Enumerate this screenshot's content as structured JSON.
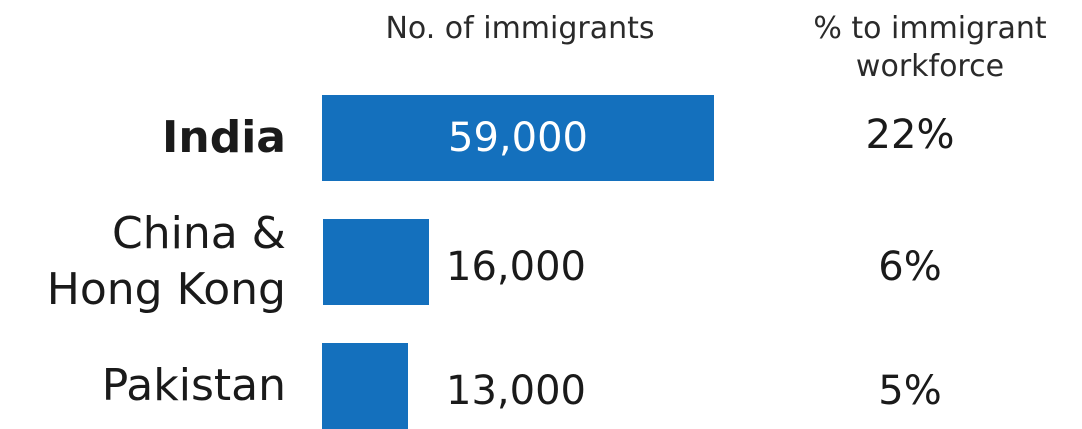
{
  "chart_data": {
    "type": "bar",
    "orientation": "horizontal",
    "headers": {
      "values": "No. of immigrants",
      "share": "% to immigrant workforce"
    },
    "categories": [
      "India",
      "China & Hong Kong",
      "Pakistan"
    ],
    "values": [
      59000,
      16000,
      13000
    ],
    "value_labels": [
      "59,000",
      "16,000",
      "13,000"
    ],
    "share_labels": [
      "22%",
      "6%",
      "5%"
    ],
    "share_values": [
      22,
      6,
      5
    ],
    "highlighted_category": "India",
    "bar_color": "#1470bd",
    "legend": "none",
    "grid": false
  }
}
